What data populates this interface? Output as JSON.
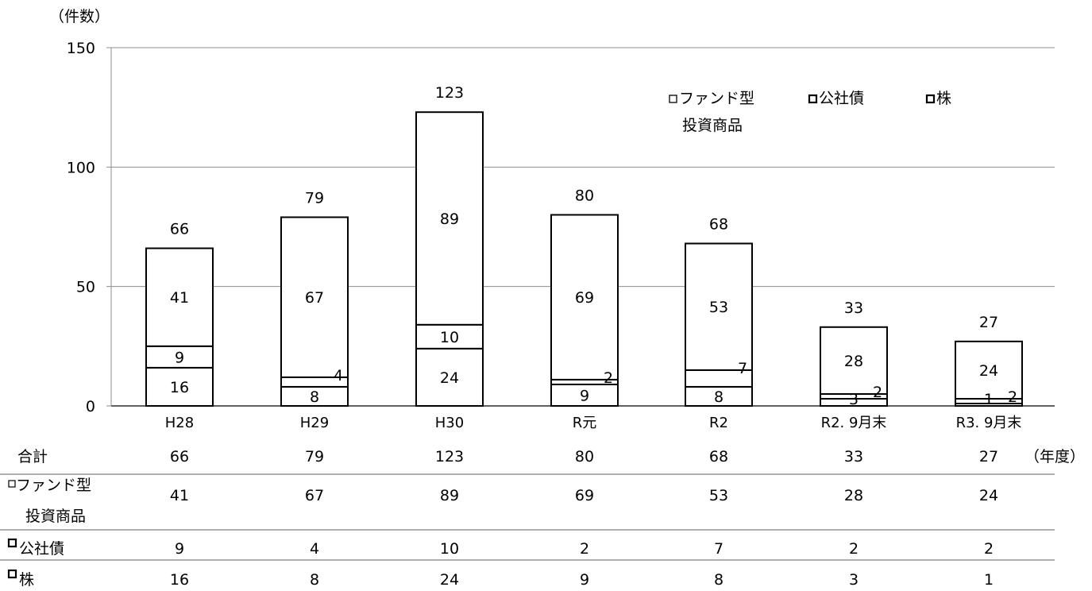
{
  "chart_data": {
    "type": "bar",
    "stacked": true,
    "y_unit_label": "（件数）",
    "x_unit_label": "（年度）",
    "ylim": [
      0,
      150
    ],
    "yticks": [
      0,
      50,
      100,
      150
    ],
    "grid": true,
    "legend_position": "top-right",
    "categories": [
      "H28",
      "H29",
      "H30",
      "R元",
      "R2",
      "R2. 9月末",
      "R3. 9月末"
    ],
    "series": [
      {
        "name": "株",
        "values": [
          16,
          8,
          24,
          9,
          8,
          3,
          1
        ]
      },
      {
        "name": "公社債",
        "values": [
          9,
          4,
          10,
          2,
          7,
          2,
          2
        ]
      },
      {
        "name": "ファンド型投資商品",
        "values": [
          41,
          67,
          89,
          69,
          53,
          28,
          24
        ]
      }
    ],
    "totals": [
      66,
      79,
      123,
      80,
      68,
      33,
      27
    ],
    "legend": [
      {
        "line1": "ファンド型",
        "line2": "投資商品"
      },
      {
        "line1": "公社債",
        "line2": ""
      },
      {
        "line1": "株",
        "line2": ""
      }
    ]
  },
  "table": {
    "rows": [
      {
        "label1": "合計",
        "label2": "",
        "values": [
          "66",
          "79",
          "123",
          "80",
          "68",
          "33",
          "27"
        ]
      },
      {
        "label1": "ファンド型",
        "label2": "投資商品",
        "values": [
          "41",
          "67",
          "89",
          "69",
          "53",
          "28",
          "24"
        ]
      },
      {
        "label1": "公社債",
        "label2": "",
        "values": [
          "9",
          "4",
          "10",
          "2",
          "7",
          "2",
          "2"
        ]
      },
      {
        "label1": "株",
        "label2": "",
        "values": [
          "16",
          "8",
          "24",
          "9",
          "8",
          "3",
          "1"
        ]
      }
    ]
  }
}
